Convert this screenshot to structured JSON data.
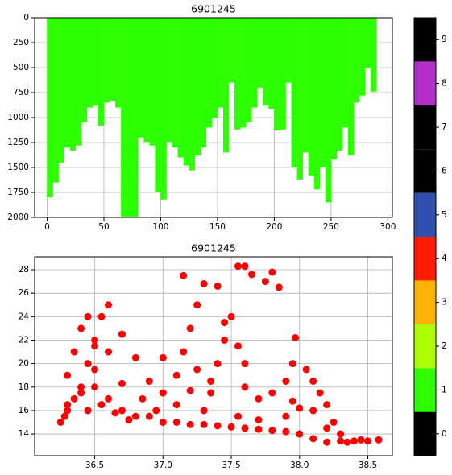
{
  "chart_data": [
    {
      "type": "bar",
      "title": "6901245",
      "color": "#2eff00",
      "x": [
        2.5,
        7.5,
        12.5,
        17.5,
        22.5,
        27.5,
        32.5,
        37.5,
        42.5,
        47.5,
        52.5,
        57.5,
        62.5,
        67.5,
        72.5,
        77.5,
        82.5,
        87.5,
        92.5,
        97.5,
        102.5,
        107.5,
        112.5,
        117.5,
        122.5,
        127.5,
        132.5,
        137.5,
        142.5,
        147.5,
        152.5,
        157.5,
        162.5,
        167.5,
        172.5,
        177.5,
        182.5,
        187.5,
        192.5,
        197.5,
        202.5,
        207.5,
        212.5,
        217.5,
        222.5,
        227.5,
        232.5,
        237.5,
        242.5,
        247.5,
        252.5,
        257.5,
        262.5,
        267.5,
        272.5,
        277.5,
        282.5,
        287.5
      ],
      "values": [
        1800,
        1650,
        1450,
        1300,
        1330,
        1280,
        1050,
        900,
        880,
        1080,
        850,
        830,
        900,
        2000,
        2000,
        2000,
        1200,
        1250,
        1280,
        1750,
        1820,
        1250,
        1300,
        1400,
        1480,
        1530,
        1380,
        1300,
        1100,
        1000,
        900,
        1350,
        650,
        1120,
        1100,
        1050,
        900,
        700,
        880,
        920,
        1130,
        1120,
        650,
        1500,
        1620,
        1350,
        1580,
        1720,
        1500,
        1850,
        1420,
        1330,
        1100,
        1380,
        850,
        780,
        500,
        740
      ],
      "xlim": [
        -11,
        304
      ],
      "xticks": [
        0,
        50,
        100,
        150,
        200,
        250,
        300
      ],
      "ylim": [
        2000,
        0
      ],
      "yticks": [
        0,
        250,
        500,
        750,
        1000,
        1250,
        1500,
        1750,
        2000
      ],
      "grid": true
    },
    {
      "type": "scatter",
      "title": "6901245",
      "color": "#ff0000",
      "x": [
        36.3,
        36.35,
        36.4,
        36.45,
        36.5,
        36.55,
        36.6,
        36.4,
        36.35,
        36.3,
        36.5,
        36.6,
        36.7,
        36.8,
        36.9,
        37.0,
        37.1,
        37.2,
        37.3,
        37.4,
        37.5,
        37.6,
        37.7,
        37.8,
        37.9,
        38.0,
        38.1,
        38.2,
        38.3,
        38.4,
        38.5,
        38.58,
        36.25,
        36.28,
        36.45,
        36.55,
        36.65,
        36.75,
        36.5,
        36.6,
        36.7,
        36.8,
        36.9,
        37.0,
        37.1,
        37.15,
        37.2,
        37.25,
        37.15,
        37.3,
        37.4,
        37.55,
        37.6,
        37.65,
        37.75,
        37.8,
        37.85,
        37.5,
        37.45,
        37.4,
        37.35,
        37.6,
        37.7,
        37.8,
        37.9,
        37.95,
        37.97,
        38.05,
        38.1,
        38.15,
        38.2,
        38.25,
        38.1,
        38.0,
        37.9,
        37.55,
        37.3,
        37.1,
        36.95,
        37.0,
        36.85,
        36.45,
        36.5,
        36.4,
        36.3,
        37.55,
        37.6,
        37.2,
        37.35,
        36.7,
        37.7,
        38.3,
        38.35,
        38.45,
        38.2,
        37.95,
        37.25,
        37.45
      ],
      "values": [
        16,
        17,
        18,
        20,
        22,
        24,
        25,
        23,
        21,
        19,
        18,
        17,
        16,
        15.5,
        15.5,
        15,
        15,
        14.8,
        14.8,
        14.7,
        14.6,
        14.5,
        14.4,
        14.3,
        14.2,
        14,
        13.6,
        13.3,
        13.4,
        13.4,
        13.4,
        13.5,
        15,
        15.5,
        16,
        16.5,
        15.8,
        15.2,
        19.5,
        21,
        22.5,
        20.5,
        18.5,
        17.5,
        19,
        21,
        23,
        25,
        27.5,
        26.8,
        26.6,
        28.3,
        28.3,
        27.6,
        27,
        27.8,
        26.5,
        24,
        22,
        20,
        18.5,
        18,
        17,
        17.5,
        18.5,
        20,
        22.2,
        19.5,
        18.5,
        17.5,
        16.5,
        15,
        16,
        16.2,
        15.5,
        15.5,
        16,
        16.5,
        16,
        20.5,
        17,
        24,
        21.5,
        17.5,
        16.5,
        21.5,
        20,
        17.7,
        17.5,
        18.3,
        15.2,
        14,
        13.3,
        13.5,
        14.5,
        16.8,
        19.5,
        23.5
      ],
      "xlim": [
        36.06,
        38.68
      ],
      "xticks": [
        36.5,
        {
          "value": 37,
          "label": "37.0"
        },
        37.5,
        {
          "value": 38,
          "label": "38.0"
        },
        38.5
      ],
      "ylim": [
        12.15,
        29.1
      ],
      "yticks": [
        14,
        16,
        18,
        20,
        22,
        24,
        26,
        28
      ],
      "grid": true
    },
    {
      "type": "colorbar",
      "colors": [
        "#000000",
        "#2eff00",
        "#aaff00",
        "#ffb300",
        "#ff1a00",
        "#3050b0",
        "#000000",
        "#000000",
        "#b030c8",
        "#000000"
      ],
      "ylim": [
        -0.5,
        9.5
      ],
      "yticks": [
        0,
        1,
        2,
        3,
        4,
        5,
        6,
        7,
        8,
        9
      ]
    }
  ]
}
